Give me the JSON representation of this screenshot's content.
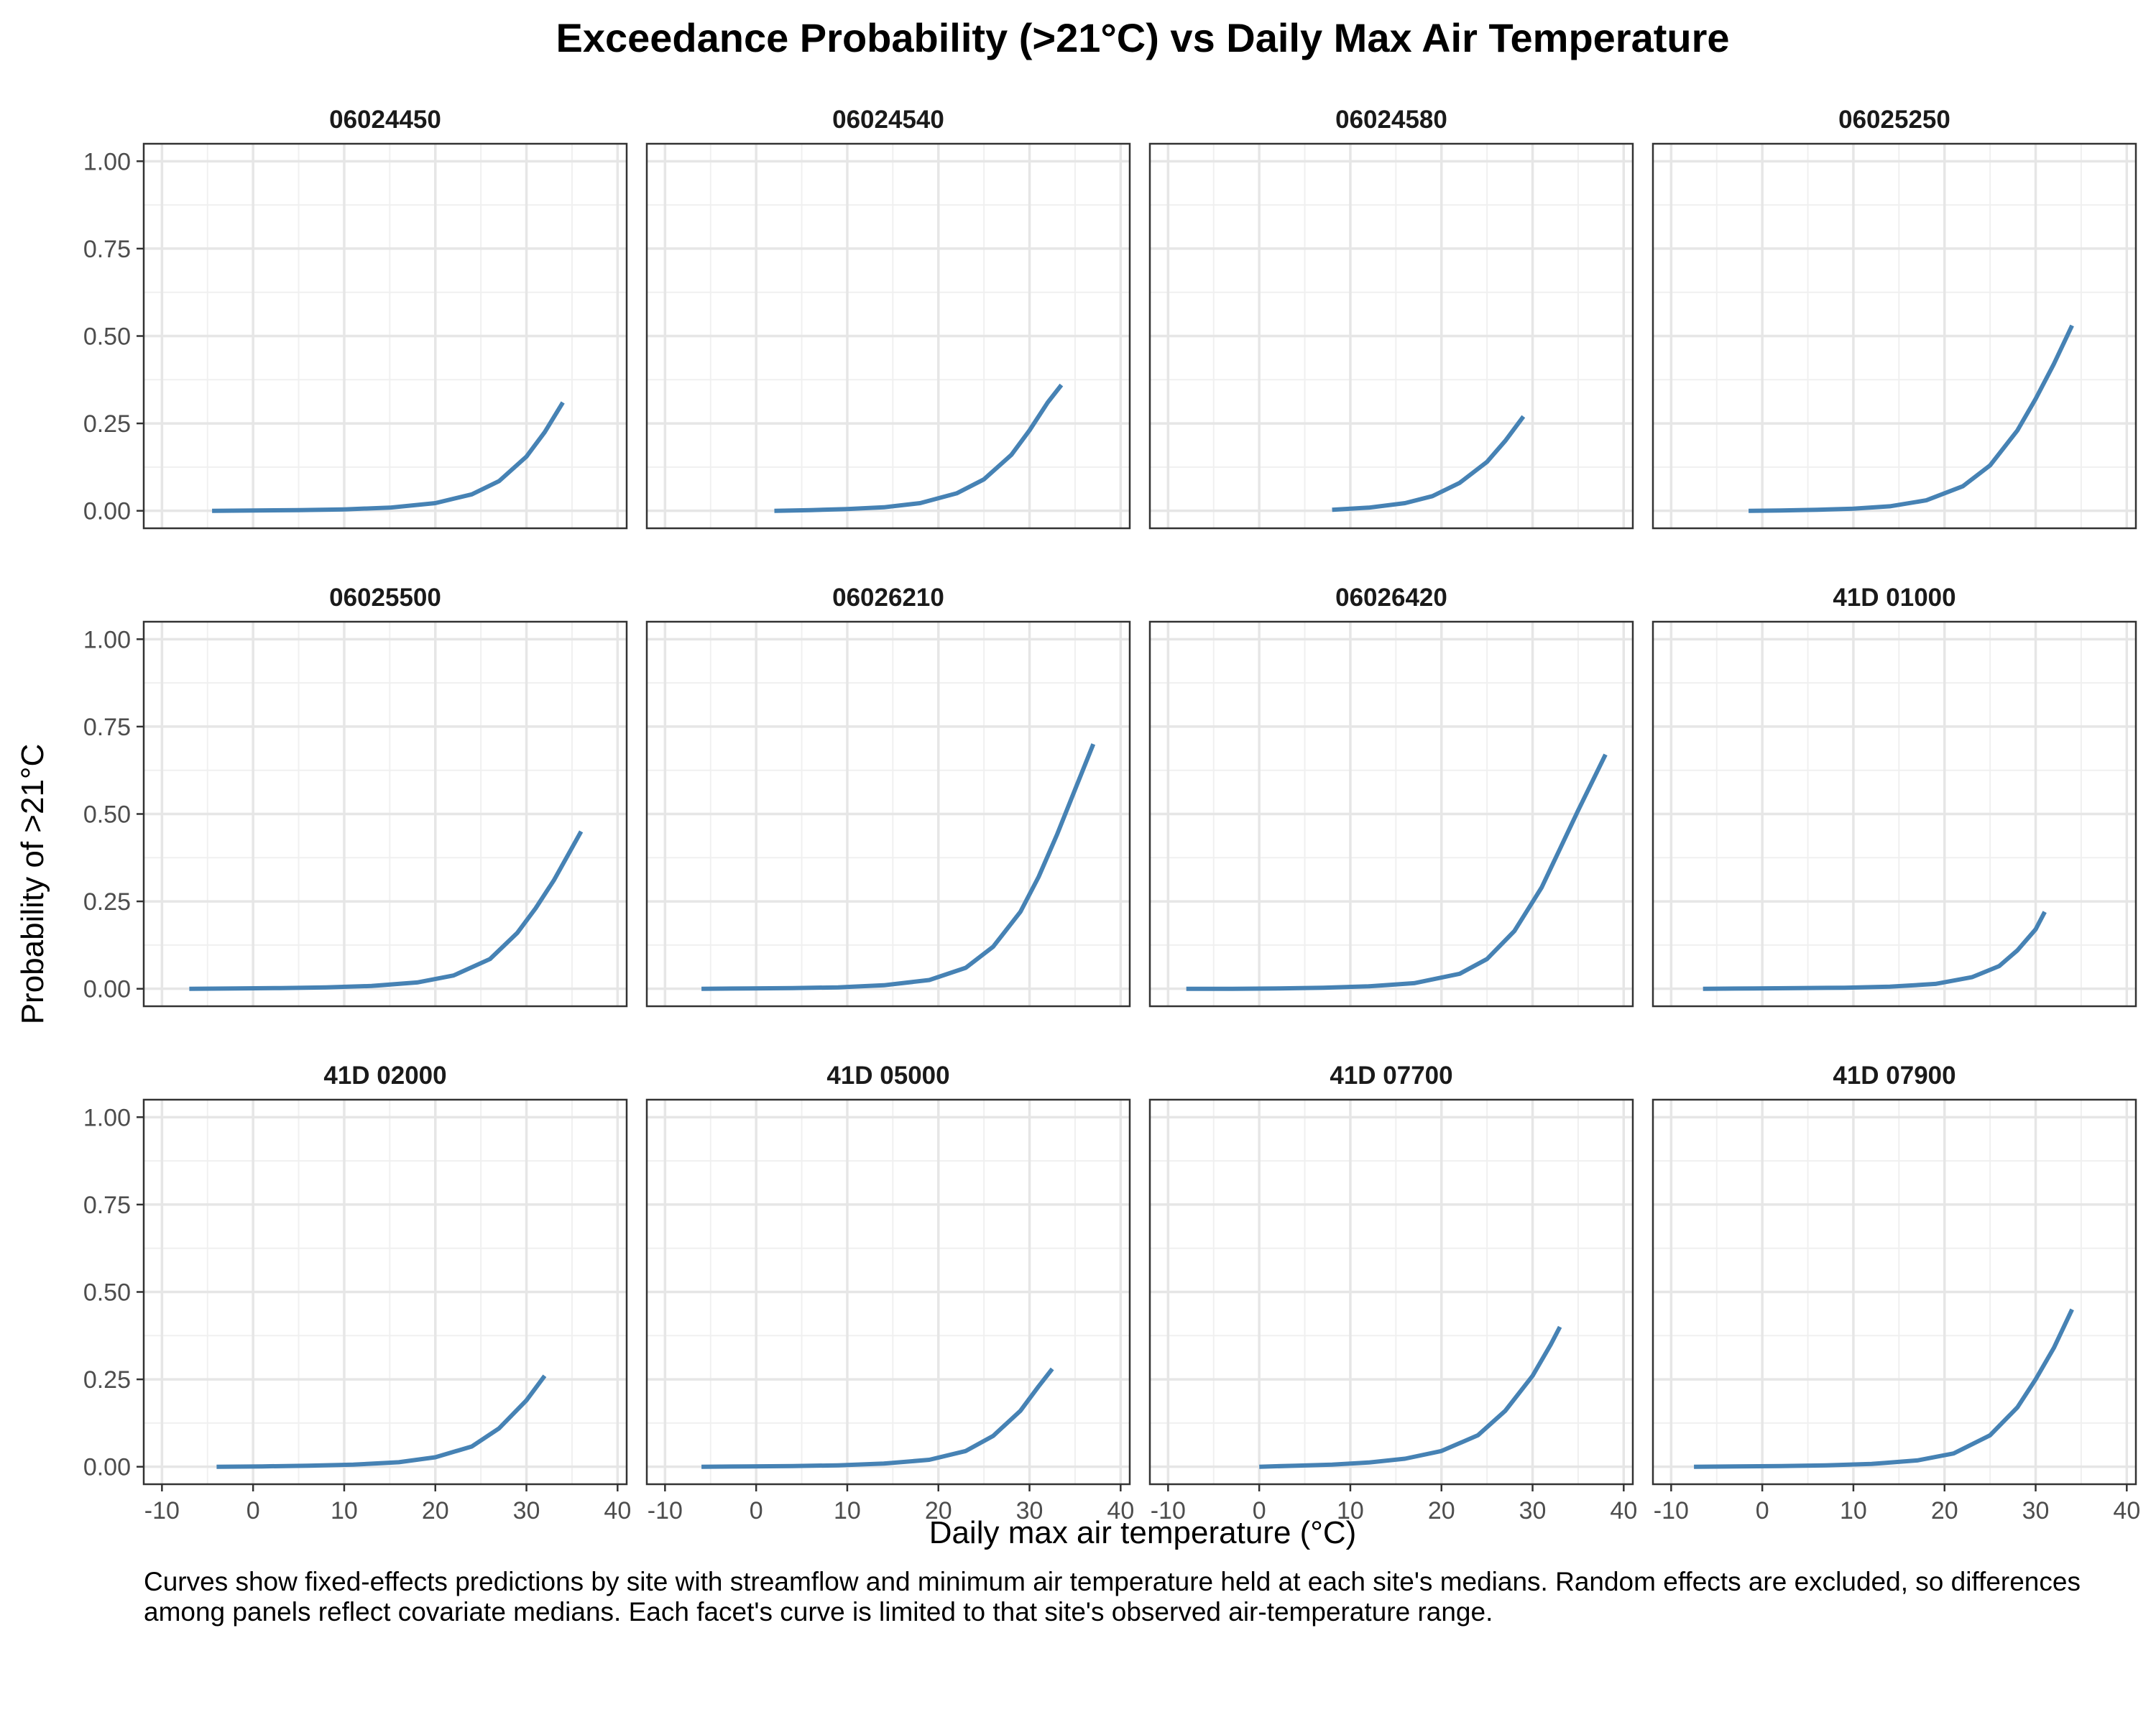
{
  "chart_data": {
    "type": "line",
    "title": "Exceedance Probability (>21°C) vs Daily Max Air Temperature",
    "xlabel": "Daily max air temperature (°C)",
    "ylabel": "Probability of >21°C",
    "xlim": [
      -12,
      41
    ],
    "ylim": [
      -0.05,
      1.05
    ],
    "x_ticks": [
      -10,
      0,
      10,
      20,
      30,
      40
    ],
    "x_tick_labels": [
      "-10",
      "0",
      "10",
      "20",
      "30",
      "40"
    ],
    "y_ticks": [
      0,
      0.25,
      0.5,
      0.75,
      1.0
    ],
    "y_tick_labels": [
      "0.00",
      "0.25",
      "0.50",
      "0.75",
      "1.00"
    ],
    "grid": true,
    "line_color": "#4682b4",
    "caption": "Curves show fixed-effects predictions by site with streamflow and minimum air temperature held at each site's medians. Random effects are excluded, so differences among panels reflect covariate medians. Each facet's curve is limited to that site's observed air-temperature range.",
    "panels": [
      {
        "site": "06024450",
        "x": [
          -4.5,
          0,
          5,
          10,
          15,
          20,
          24,
          27,
          30,
          32,
          34
        ],
        "y": [
          0.0,
          0.001,
          0.002,
          0.004,
          0.009,
          0.022,
          0.047,
          0.085,
          0.155,
          0.225,
          0.31
        ]
      },
      {
        "site": "06024540",
        "x": [
          2,
          6,
          10,
          14,
          18,
          22,
          25,
          28,
          30,
          32,
          33.5
        ],
        "y": [
          0.0,
          0.002,
          0.005,
          0.01,
          0.022,
          0.05,
          0.09,
          0.16,
          0.23,
          0.31,
          0.36
        ]
      },
      {
        "site": "06024580",
        "x": [
          8,
          12,
          16,
          19,
          22,
          25,
          27,
          29
        ],
        "y": [
          0.003,
          0.009,
          0.022,
          0.042,
          0.08,
          0.14,
          0.2,
          0.27
        ]
      },
      {
        "site": "06025250",
        "x": [
          -1.5,
          2,
          6,
          10,
          14,
          18,
          22,
          25,
          28,
          30,
          32,
          34
        ],
        "y": [
          0.0,
          0.001,
          0.003,
          0.006,
          0.013,
          0.03,
          0.07,
          0.13,
          0.23,
          0.32,
          0.42,
          0.53
        ]
      },
      {
        "site": "06025500",
        "x": [
          -7,
          -2,
          3,
          8,
          13,
          18,
          22,
          26,
          29,
          31,
          33,
          36
        ],
        "y": [
          0.0,
          0.001,
          0.002,
          0.004,
          0.008,
          0.018,
          0.038,
          0.085,
          0.16,
          0.23,
          0.31,
          0.45
        ]
      },
      {
        "site": "06026210",
        "x": [
          -6,
          -1,
          4,
          9,
          14,
          19,
          23,
          26,
          29,
          31,
          33,
          35,
          37
        ],
        "y": [
          0.0,
          0.001,
          0.002,
          0.004,
          0.01,
          0.025,
          0.06,
          0.12,
          0.22,
          0.32,
          0.44,
          0.57,
          0.7
        ]
      },
      {
        "site": "06026420",
        "x": [
          -8,
          -3,
          2,
          7,
          12,
          17,
          22,
          25,
          28,
          31,
          33,
          35,
          38
        ],
        "y": [
          0.0,
          0.0,
          0.001,
          0.003,
          0.007,
          0.016,
          0.043,
          0.085,
          0.165,
          0.29,
          0.4,
          0.51,
          0.67
        ]
      },
      {
        "site": "41D 01000",
        "x": [
          -6.5,
          -1,
          4,
          9,
          14,
          19,
          23,
          26,
          28,
          30,
          31
        ],
        "y": [
          0.0,
          0.001,
          0.002,
          0.003,
          0.006,
          0.014,
          0.033,
          0.065,
          0.11,
          0.17,
          0.22
        ]
      },
      {
        "site": "41D 02000",
        "x": [
          -4,
          1,
          6,
          11,
          16,
          20,
          24,
          27,
          30,
          32
        ],
        "y": [
          0.0,
          0.001,
          0.003,
          0.006,
          0.013,
          0.027,
          0.058,
          0.11,
          0.19,
          0.26
        ]
      },
      {
        "site": "41D 05000",
        "x": [
          -6,
          -1,
          4,
          9,
          14,
          19,
          23,
          26,
          29,
          31,
          32.5
        ],
        "y": [
          0.0,
          0.001,
          0.002,
          0.004,
          0.009,
          0.02,
          0.045,
          0.088,
          0.16,
          0.23,
          0.28
        ]
      },
      {
        "site": "41D 07700",
        "x": [
          0,
          4,
          8,
          12,
          16,
          20,
          24,
          27,
          30,
          32,
          33
        ],
        "y": [
          0.0,
          0.003,
          0.006,
          0.012,
          0.023,
          0.045,
          0.09,
          0.16,
          0.26,
          0.35,
          0.4
        ]
      },
      {
        "site": "41D 07900",
        "x": [
          -7.5,
          -3,
          2,
          7,
          12,
          17,
          21,
          25,
          28,
          30,
          32,
          34
        ],
        "y": [
          0.0,
          0.001,
          0.002,
          0.004,
          0.008,
          0.018,
          0.038,
          0.09,
          0.17,
          0.25,
          0.34,
          0.45
        ]
      }
    ]
  }
}
